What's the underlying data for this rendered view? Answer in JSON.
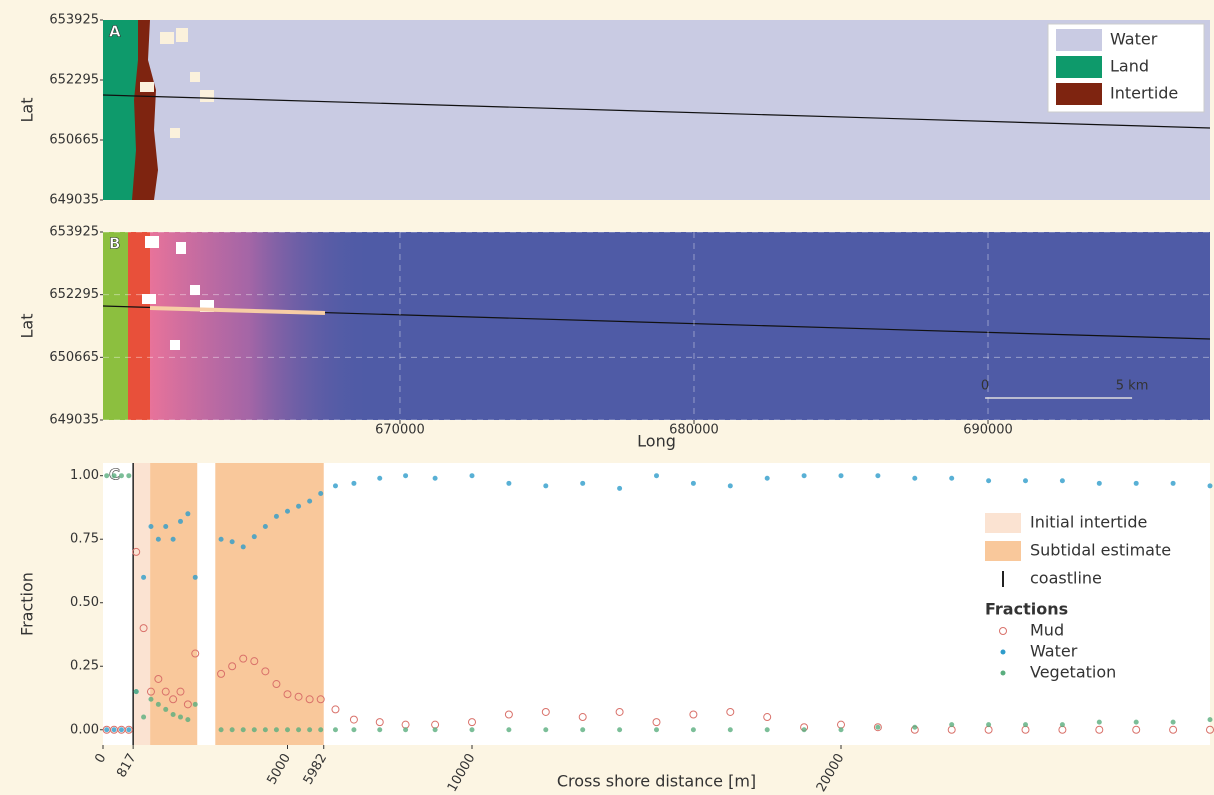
{
  "chart_data": [
    {
      "type": "map",
      "panel_label": "A",
      "ylabel": "Lat",
      "xlim": [
        659900,
        697550
      ],
      "ylim": [
        649035,
        653925
      ],
      "yticks": [
        649035,
        650665,
        652295,
        653925
      ],
      "classes": [
        {
          "name": "Water",
          "color": "#c9cbe3"
        },
        {
          "name": "Land",
          "color": "#0e9a6b"
        },
        {
          "name": "Intertide",
          "color": "#7e2410"
        }
      ],
      "legend": "upper right"
    },
    {
      "type": "map",
      "panel_label": "B",
      "ylabel": "Lat",
      "xlabel": "Long",
      "xlim": [
        659900,
        697550
      ],
      "ylim": [
        649035,
        653925
      ],
      "yticks": [
        649035,
        650665,
        652295,
        653925
      ],
      "xticks": [
        670000,
        680000,
        690000
      ],
      "grid": true,
      "scalebar": {
        "start": 689900,
        "length": 5000,
        "labels": [
          "0",
          "5 km"
        ]
      }
    },
    {
      "type": "scatter",
      "panel_label": "C",
      "ylabel": "Fraction",
      "xlabel": "Cross shore distance [m]",
      "xlim": [
        0,
        30000
      ],
      "ylim": [
        -0.06,
        1.05
      ],
      "xticks": [
        0,
        817,
        5000,
        5982,
        10000,
        20000
      ],
      "yticks": [
        {
          "value": 0,
          "label": "0.00"
        },
        {
          "value": 0.25,
          "label": "0.25"
        },
        {
          "value": 0.5,
          "label": "0.50"
        },
        {
          "value": 0.75,
          "label": "0.75"
        },
        {
          "value": 1,
          "label": "1.00"
        }
      ],
      "regions": [
        {
          "name": "Initial intertide",
          "color": "#fbe3d2",
          "spans": [
            [
              817,
              1277
            ]
          ]
        },
        {
          "name": "Subtidal estimate",
          "color": "#f9c89b",
          "spans": [
            [
              1277,
              2554
            ],
            [
              3043,
              5982
            ]
          ]
        }
      ],
      "coastline": {
        "name": "coastline",
        "x": 817
      },
      "legend_title": "Fractions",
      "x": [
        100,
        300,
        500,
        700,
        900,
        1100,
        1300,
        1500,
        1700,
        1900,
        2100,
        2300,
        2500,
        3200,
        3500,
        3800,
        4100,
        4400,
        4700,
        5000,
        5300,
        5600,
        5900,
        6300,
        6800,
        7500,
        8200,
        9000,
        10000,
        11000,
        12000,
        13000,
        14000,
        15000,
        16000,
        17000,
        18000,
        19000,
        20000,
        21000,
        22000,
        23000,
        24000,
        25000,
        26000,
        27000,
        28000,
        29000,
        30000
      ],
      "series": [
        {
          "name": "Mud",
          "color": "#d9716a",
          "marker": "open",
          "values": [
            0,
            0,
            0,
            0,
            0.7,
            0.4,
            0.15,
            0.2,
            0.15,
            0.12,
            0.15,
            0.1,
            0.3,
            0.22,
            0.25,
            0.28,
            0.27,
            0.23,
            0.18,
            0.14,
            0.13,
            0.12,
            0.12,
            0.08,
            0.04,
            0.03,
            0.02,
            0.02,
            0.03,
            0.06,
            0.07,
            0.05,
            0.07,
            0.03,
            0.06,
            0.07,
            0.05,
            0.01,
            0.02,
            0.01,
            0,
            0,
            0,
            0,
            0,
            0,
            0,
            0,
            0
          ]
        },
        {
          "name": "Water",
          "color": "#2e9ccb",
          "marker": "dot",
          "values": [
            0,
            0,
            0,
            0,
            0.15,
            0.6,
            0.8,
            0.75,
            0.8,
            0.75,
            0.82,
            0.85,
            0.6,
            0.75,
            0.74,
            0.72,
            0.76,
            0.8,
            0.84,
            0.86,
            0.88,
            0.9,
            0.93,
            0.96,
            0.97,
            0.99,
            1.0,
            0.99,
            1.0,
            0.97,
            0.96,
            0.97,
            0.95,
            1.0,
            0.97,
            0.96,
            0.99,
            1.0,
            1.0,
            1.0,
            0.99,
            0.99,
            0.98,
            0.98,
            0.98,
            0.97,
            0.97,
            0.97,
            0.96
          ]
        },
        {
          "name": "Vegetation",
          "color": "#5aae7e",
          "marker": "dot",
          "values": [
            1,
            1,
            1,
            1,
            0.15,
            0.05,
            0.12,
            0.1,
            0.08,
            0.06,
            0.05,
            0.04,
            0.1,
            0,
            0,
            0,
            0,
            0,
            0,
            0,
            0,
            0,
            0,
            0,
            0,
            0,
            0,
            0,
            0,
            0,
            0,
            0,
            0,
            0,
            0,
            0,
            0,
            0,
            0,
            0.01,
            0.01,
            0.02,
            0.02,
            0.02,
            0.02,
            0.03,
            0.03,
            0.03,
            0.04
          ]
        }
      ]
    }
  ]
}
